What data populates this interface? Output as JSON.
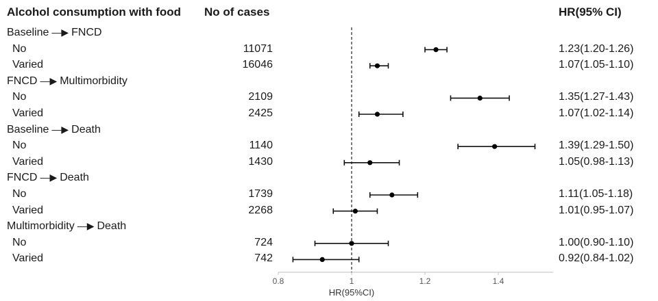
{
  "headers": {
    "label": "Alcohol consumption with food",
    "cases": "No of cases",
    "hr": "HR(95% CI)"
  },
  "rows": [
    {
      "kind": "group",
      "from": "Baseline",
      "to": "FNCD"
    },
    {
      "kind": "item",
      "label": "No",
      "cases": "11071",
      "hr_text": "1.23(1.20-1.26)"
    },
    {
      "kind": "item",
      "label": "Varied",
      "cases": "16046",
      "hr_text": "1.07(1.05-1.10)"
    },
    {
      "kind": "group",
      "from": "FNCD",
      "to": "Multimorbidity"
    },
    {
      "kind": "item",
      "label": "No",
      "cases": "2109",
      "hr_text": "1.35(1.27-1.43)"
    },
    {
      "kind": "item",
      "label": "Varied",
      "cases": "2425",
      "hr_text": "1.07(1.02-1.14)"
    },
    {
      "kind": "group",
      "from": "Baseline",
      "to": "Death"
    },
    {
      "kind": "item",
      "label": "No",
      "cases": "1140",
      "hr_text": "1.39(1.29-1.50)"
    },
    {
      "kind": "item",
      "label": "Varied",
      "cases": "1430",
      "hr_text": "1.05(0.98-1.13)"
    },
    {
      "kind": "group",
      "from": "FNCD",
      "to": "Death"
    },
    {
      "kind": "item",
      "label": "No",
      "cases": "1739",
      "hr_text": "1.11(1.05-1.18)"
    },
    {
      "kind": "item",
      "label": "Varied",
      "cases": "2268",
      "hr_text": "1.01(0.95-1.07)"
    },
    {
      "kind": "group",
      "from": "Multimorbidity",
      "to": "Death"
    },
    {
      "kind": "item",
      "label": "No",
      "cases": "724",
      "hr_text": "1.00(0.90-1.10)"
    },
    {
      "kind": "item",
      "label": "Varied",
      "cases": "742",
      "hr_text": "0.92(0.84-1.02)"
    }
  ],
  "chart_data": {
    "type": "forest",
    "xlabel": "HR(95%CI)",
    "xlim": [
      0.8,
      1.55
    ],
    "xticks": [
      0.8,
      1,
      1.2,
      1.4
    ],
    "xtick_labels": [
      "0.8",
      "1",
      "1.2",
      "1.4"
    ],
    "reference_line": 1,
    "grid": false,
    "points": [
      {
        "group": "Baseline → FNCD",
        "label": "No",
        "hr": 1.23,
        "lo": 1.2,
        "hi": 1.26
      },
      {
        "group": "Baseline → FNCD",
        "label": "Varied",
        "hr": 1.07,
        "lo": 1.05,
        "hi": 1.1
      },
      {
        "group": "FNCD → Multimorbidity",
        "label": "No",
        "hr": 1.35,
        "lo": 1.27,
        "hi": 1.43
      },
      {
        "group": "FNCD → Multimorbidity",
        "label": "Varied",
        "hr": 1.07,
        "lo": 1.02,
        "hi": 1.14
      },
      {
        "group": "Baseline → Death",
        "label": "No",
        "hr": 1.39,
        "lo": 1.29,
        "hi": 1.5
      },
      {
        "group": "Baseline → Death",
        "label": "Varied",
        "hr": 1.05,
        "lo": 0.98,
        "hi": 1.13
      },
      {
        "group": "FNCD → Death",
        "label": "No",
        "hr": 1.11,
        "lo": 1.05,
        "hi": 1.18
      },
      {
        "group": "FNCD → Death",
        "label": "Varied",
        "hr": 1.01,
        "lo": 0.95,
        "hi": 1.07
      },
      {
        "group": "Multimorbidity → Death",
        "label": "No",
        "hr": 1.0,
        "lo": 0.9,
        "hi": 1.1
      },
      {
        "group": "Multimorbidity → Death",
        "label": "Varied",
        "hr": 0.92,
        "lo": 0.84,
        "hi": 1.02
      }
    ]
  }
}
